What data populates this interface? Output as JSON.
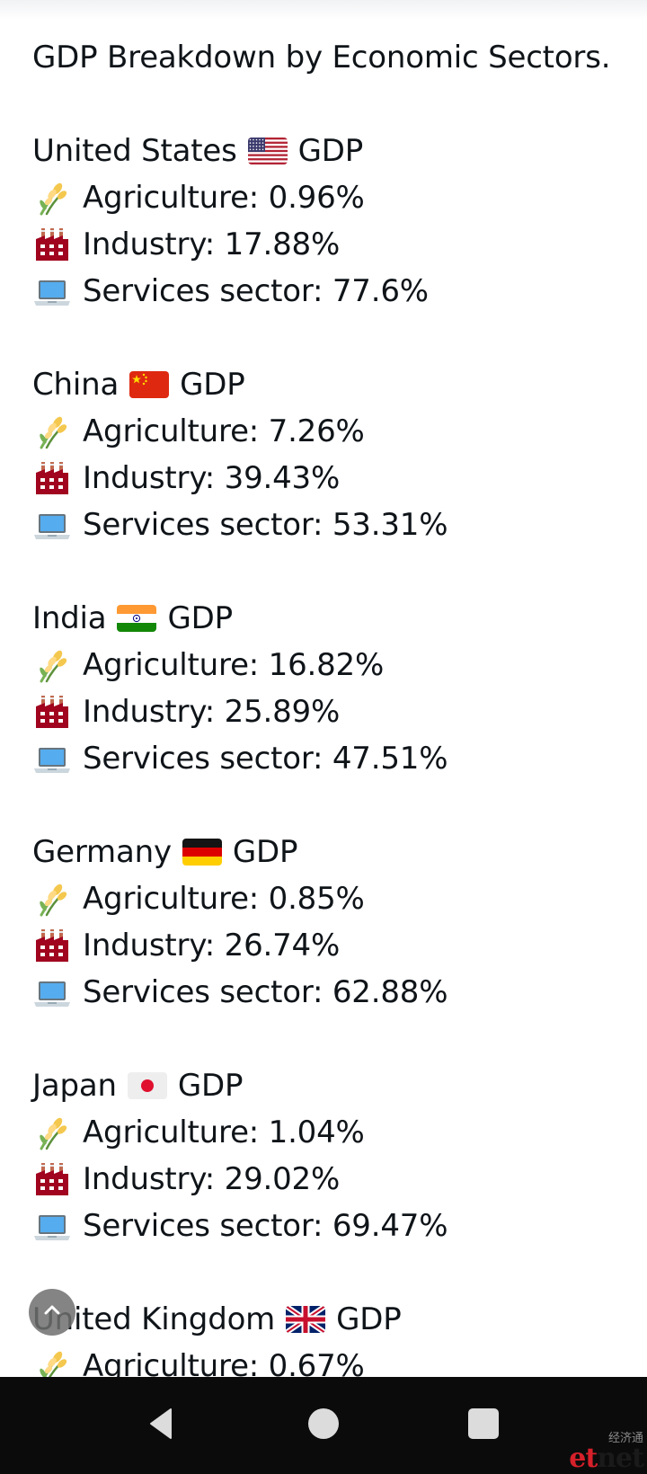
{
  "post": {
    "title": "GDP Breakdown by Economic Sectors.",
    "countries": [
      {
        "name": "United States",
        "flag": "us-flag",
        "suffix": "GDP",
        "sectors": [
          {
            "icon": "sheaf-of-rice-icon",
            "text": "Agriculture: 0.96%"
          },
          {
            "icon": "factory-icon",
            "text": "Industry: 17.88%"
          },
          {
            "icon": "laptop-icon",
            "text": "Services sector: 77.6%"
          }
        ]
      },
      {
        "name": "China",
        "flag": "china-flag",
        "suffix": "GDP",
        "sectors": [
          {
            "icon": "sheaf-of-rice-icon",
            "text": "Agriculture: 7.26%"
          },
          {
            "icon": "factory-icon",
            "text": "Industry: 39.43%"
          },
          {
            "icon": "laptop-icon",
            "text": "Services sector: 53.31%"
          }
        ]
      },
      {
        "name": "India",
        "flag": "india-flag",
        "suffix": "GDP",
        "sectors": [
          {
            "icon": "sheaf-of-rice-icon",
            "text": "Agriculture: 16.82%"
          },
          {
            "icon": "factory-icon",
            "text": "Industry: 25.89%"
          },
          {
            "icon": "laptop-icon",
            "text": "Services sector: 47.51%"
          }
        ]
      },
      {
        "name": "Germany",
        "flag": "germany-flag",
        "suffix": "GDP",
        "sectors": [
          {
            "icon": "sheaf-of-rice-icon",
            "text": "Agriculture: 0.85%"
          },
          {
            "icon": "factory-icon",
            "text": "Industry: 26.74%"
          },
          {
            "icon": "laptop-icon",
            "text": "Services sector: 62.88%"
          }
        ]
      },
      {
        "name": "Japan",
        "flag": "japan-flag",
        "suffix": "GDP",
        "sectors": [
          {
            "icon": "sheaf-of-rice-icon",
            "text": "Agriculture: 1.04%"
          },
          {
            "icon": "factory-icon",
            "text": "Industry: 29.02%"
          },
          {
            "icon": "laptop-icon",
            "text": "Services sector: 69.47%"
          }
        ]
      },
      {
        "name": "United Kingdom",
        "flag": "uk-flag",
        "suffix": "GDP",
        "sectors": [
          {
            "icon": "sheaf-of-rice-icon",
            "text": "Agriculture: 0.67%"
          }
        ]
      }
    ]
  },
  "scroll_up_button": {
    "icon": "chevron-up-icon"
  },
  "nav_bar": {
    "buttons": [
      {
        "name": "back",
        "icon": "back-triangle-icon"
      },
      {
        "name": "home",
        "icon": "home-circle-icon"
      },
      {
        "name": "recents",
        "icon": "recents-square-icon"
      }
    ]
  },
  "watermark": {
    "chinese": "经济通",
    "logo_left": "et",
    "logo_right": "net"
  },
  "colors": {
    "text": "#0f1419",
    "background": "#ffffff",
    "navbar": "#0b0b0b",
    "nav_icons": "#dcdcdc",
    "scroll_button": "#6e6e6e"
  }
}
